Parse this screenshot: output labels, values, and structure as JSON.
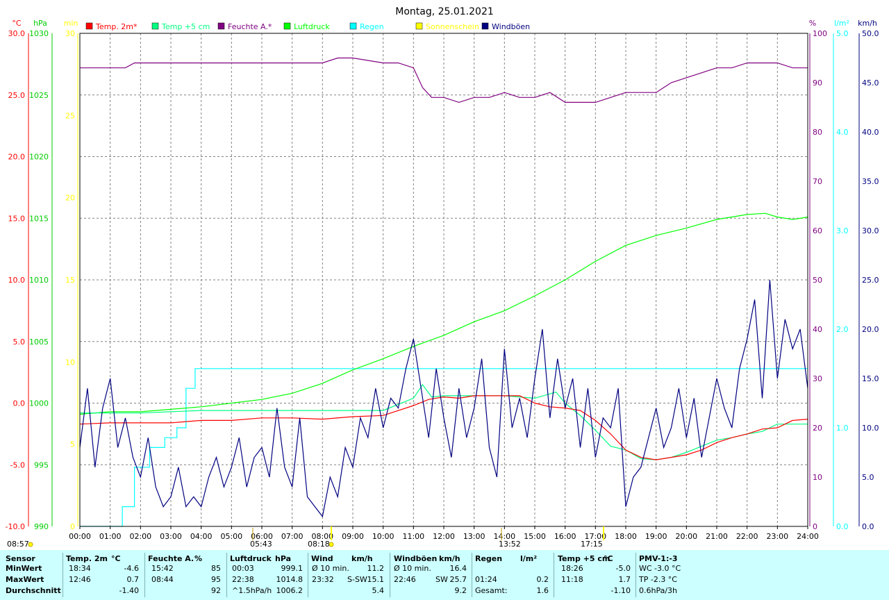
{
  "chart_data": {
    "type": "line",
    "title": "Montag, 25.01.2021",
    "x_ticks": [
      "00:00",
      "01:00",
      "02:00",
      "03:00",
      "04:00",
      "05:00",
      "06:00",
      "07:00",
      "08:00",
      "09:00",
      "10:00",
      "11:00",
      "12:00",
      "13:00",
      "14:00",
      "15:00",
      "16:00",
      "17:00",
      "18:00",
      "19:00",
      "20:00",
      "21:00",
      "22:00",
      "23:00",
      "24:00"
    ],
    "left_axes": [
      {
        "unit": "°C",
        "color": "#ff0000",
        "ticks": [
          "30.0",
          "25.0",
          "20.0",
          "15.0",
          "10.0",
          "5.0",
          "0.0",
          "-5.0",
          "-10.0"
        ]
      },
      {
        "unit": "hPa",
        "color": "#00cc00",
        "ticks": [
          "1030",
          "1025",
          "1020",
          "1015",
          "1010",
          "1005",
          "1000",
          "995",
          "990"
        ]
      },
      {
        "unit": "min",
        "color": "#ffff00",
        "ticks": [
          "30",
          "25",
          "20",
          "15",
          "10",
          "5",
          "0"
        ]
      }
    ],
    "right_axes": [
      {
        "unit": "%",
        "color": "#800080",
        "ticks": [
          "100",
          "90",
          "80",
          "70",
          "60",
          "50",
          "40",
          "30",
          "20",
          "10",
          "0"
        ]
      },
      {
        "unit": "l/m²",
        "color": "#00ffff",
        "ticks": [
          "5.0",
          "4.0",
          "3.0",
          "2.0",
          "1.0",
          "0.0"
        ]
      },
      {
        "unit": "km/h",
        "color": "#000080",
        "ticks": [
          "50.0",
          "45.0",
          "40.0",
          "35.0",
          "30.0",
          "25.0",
          "20.0",
          "15.0",
          "10.0",
          "5.0",
          "0.0"
        ]
      }
    ],
    "legend": [
      {
        "label": "Temp. 2m*",
        "color": "#ff0000"
      },
      {
        "label": "Temp +5 cm",
        "color": "#00ff80"
      },
      {
        "label": "Feuchte A.*",
        "color": "#800080"
      },
      {
        "label": "Luftdruck",
        "color": "#00ff00"
      },
      {
        "label": "Regen",
        "color": "#00ffff"
      },
      {
        "label": "Sonnenschein",
        "color": "#ffff00"
      },
      {
        "label": "Windböen",
        "color": "#000080"
      }
    ],
    "sun_markers": [
      "08:57",
      "05:43",
      "08:18",
      "13:52",
      "17:15"
    ],
    "series": [
      {
        "name": "Temp. 2m*",
        "axis": "°C",
        "color": "#ff0000",
        "x": [
          0,
          1,
          2,
          3,
          4,
          5,
          6,
          7,
          8,
          9,
          10,
          11,
          11.5,
          12,
          12.5,
          13,
          14,
          14.5,
          15,
          15.5,
          16,
          16.5,
          17,
          17.5,
          18,
          18.5,
          19,
          19.5,
          20,
          20.5,
          21,
          21.5,
          22,
          22.5,
          23,
          23.5,
          24
        ],
        "y": [
          -1.7,
          -1.6,
          -1.6,
          -1.6,
          -1.4,
          -1.4,
          -1.2,
          -1.2,
          -1.3,
          -1.1,
          -1.0,
          -0.2,
          0.3,
          0.5,
          0.4,
          0.6,
          0.6,
          0.6,
          0.0,
          -0.3,
          -0.4,
          -0.6,
          -1.4,
          -2.5,
          -3.8,
          -4.4,
          -4.6,
          -4.4,
          -4.2,
          -3.8,
          -3.2,
          -2.8,
          -2.5,
          -2.1,
          -2.0,
          -1.4,
          -1.3
        ]
      },
      {
        "name": "Temp +5 cm",
        "axis": "°C",
        "color": "#00ff80",
        "x": [
          0,
          1,
          2,
          3,
          4,
          5,
          6,
          7,
          8,
          9,
          10,
          11,
          11.3,
          11.6,
          12,
          13,
          14,
          15,
          15.7,
          16,
          16.5,
          17,
          17.5,
          18,
          18.5,
          19,
          19.5,
          20,
          20.5,
          21,
          21.5,
          22,
          22.5,
          23,
          23.5,
          24
        ],
        "y": [
          -0.8,
          -0.8,
          -0.8,
          -0.7,
          -0.6,
          -0.6,
          -0.6,
          -0.6,
          -0.6,
          -0.6,
          -0.6,
          0.4,
          1.5,
          0.5,
          0.6,
          0.6,
          0.6,
          0.4,
          0.9,
          0.0,
          -1.0,
          -2.2,
          -3.5,
          -3.8,
          -4.5,
          -4.6,
          -4.4,
          -4.0,
          -3.5,
          -3.0,
          -2.8,
          -2.5,
          -2.3,
          -1.7,
          -1.7,
          -1.7
        ]
      },
      {
        "name": "Feuchte A.*",
        "axis": "%",
        "color": "#800080",
        "x": [
          0,
          1.5,
          1.8,
          2,
          5,
          8,
          8.5,
          9,
          10,
          10.5,
          11,
          11.3,
          11.6,
          12,
          12.5,
          13,
          13.5,
          14,
          14.5,
          15,
          15.5,
          16,
          16.5,
          17,
          17.5,
          18,
          18.5,
          19,
          19.5,
          20,
          20.5,
          21,
          21.5,
          22,
          23,
          23.5,
          24
        ],
        "y": [
          93,
          93,
          94,
          94,
          94,
          94,
          95,
          95,
          94,
          94,
          93,
          89,
          87,
          87,
          86,
          87,
          87,
          88,
          87,
          87,
          88,
          86,
          86,
          86,
          87,
          88,
          88,
          88,
          90,
          91,
          92,
          93,
          93,
          94,
          94,
          93,
          93
        ]
      },
      {
        "name": "Luftdruck",
        "axis": "hPa",
        "color": "#00ff00",
        "x": [
          0,
          1,
          2,
          3,
          4,
          5,
          6,
          7,
          8,
          9,
          10,
          11,
          12,
          13,
          14,
          15,
          16,
          17,
          18,
          19,
          20,
          21,
          22,
          22.6,
          23,
          23.5,
          24
        ],
        "y": [
          999.1,
          999.3,
          999.3,
          999.5,
          999.7,
          1000.0,
          1000.3,
          1000.8,
          1001.6,
          1002.7,
          1003.6,
          1004.6,
          1005.5,
          1006.6,
          1007.5,
          1008.7,
          1010.0,
          1011.5,
          1012.8,
          1013.6,
          1014.2,
          1014.9,
          1015.3,
          1015.4,
          1015.1,
          1014.9,
          1015.1
        ]
      },
      {
        "name": "Regen",
        "axis": "l/m²",
        "color": "#00ffff",
        "x": [
          0,
          1.0,
          1.4,
          1.8,
          2.3,
          2.8,
          3.2,
          3.5,
          3.8,
          4.0,
          24
        ],
        "y": [
          0.0,
          0.0,
          0.2,
          0.6,
          0.8,
          0.9,
          1.0,
          1.4,
          1.6,
          1.6,
          1.6
        ]
      },
      {
        "name": "Windböen",
        "axis": "km/h",
        "color": "#000080",
        "x": [
          0,
          0.25,
          0.5,
          0.75,
          1.0,
          1.25,
          1.5,
          1.75,
          2.0,
          2.25,
          2.5,
          2.75,
          3.0,
          3.25,
          3.5,
          3.75,
          4.0,
          4.25,
          4.5,
          4.75,
          5.0,
          5.25,
          5.5,
          5.75,
          6.0,
          6.25,
          6.5,
          6.75,
          7.0,
          7.25,
          7.5,
          7.75,
          8.0,
          8.25,
          8.5,
          8.75,
          9.0,
          9.25,
          9.5,
          9.75,
          10.0,
          10.25,
          10.5,
          10.75,
          11.0,
          11.25,
          11.5,
          11.75,
          12.0,
          12.25,
          12.5,
          12.75,
          13.0,
          13.25,
          13.5,
          13.75,
          14.0,
          14.25,
          14.5,
          14.75,
          15.0,
          15.25,
          15.5,
          15.75,
          16.0,
          16.25,
          16.5,
          16.75,
          17.0,
          17.25,
          17.5,
          17.75,
          18.0,
          18.25,
          18.5,
          18.75,
          19.0,
          19.25,
          19.5,
          19.75,
          20.0,
          20.25,
          20.5,
          20.75,
          21.0,
          21.25,
          21.5,
          21.75,
          22.0,
          22.25,
          22.5,
          22.75,
          23.0,
          23.25,
          23.5,
          23.75,
          24.0
        ],
        "y": [
          8,
          14,
          6,
          12,
          15,
          8,
          11,
          7,
          5,
          9,
          4,
          2,
          3,
          6,
          2,
          3,
          2,
          5,
          7,
          4,
          6,
          9,
          4,
          7,
          8,
          5,
          12,
          6,
          4,
          11,
          3,
          2,
          1,
          5,
          3,
          8,
          6,
          11,
          9,
          14,
          10,
          13,
          12,
          16,
          19,
          14,
          9,
          16,
          11,
          7,
          14,
          9,
          12,
          17,
          8,
          5,
          18,
          10,
          13,
          9,
          15,
          20,
          11,
          17,
          12,
          15,
          8,
          14,
          7,
          11,
          10,
          14,
          2,
          5,
          6,
          9,
          12,
          8,
          10,
          14,
          9,
          13,
          7,
          11,
          15,
          12,
          10,
          16,
          19,
          23,
          13,
          25,
          15,
          21,
          18,
          20,
          14
        ]
      }
    ]
  },
  "stats": {
    "headers": [
      "Sensor",
      "Temp. 2m",
      "°C",
      "Feuchte A.",
      "%",
      "Luftdruck",
      "hPa",
      "Wind",
      "km/h",
      "Windböen",
      "km/h",
      "Regen",
      "l/m²",
      "Temp +5 cm",
      "°C",
      "PMV-1:-3"
    ],
    "row_labels": [
      "MinWert",
      "MaxWert",
      "Durchschnitt"
    ],
    "temp2m": [
      [
        "18:34",
        "-4.6"
      ],
      [
        "12:46",
        "0.7"
      ],
      [
        "",
        "-1.40"
      ]
    ],
    "humidity": [
      [
        "15:42",
        "85"
      ],
      [
        "08:44",
        "95"
      ],
      [
        "",
        "92"
      ]
    ],
    "pressure": [
      [
        "00:03",
        "999.1"
      ],
      [
        "22:38",
        "1014.8"
      ],
      [
        "^1.5hPa/h",
        "1006.2"
      ]
    ],
    "wind": [
      [
        "Ø 10 min.",
        "",
        "11.2"
      ],
      [
        "23:32",
        "S-SW",
        "15.1"
      ],
      [
        "",
        "",
        "5.4"
      ]
    ],
    "gusts": [
      [
        "Ø 10 min.",
        "",
        "16.4"
      ],
      [
        "22:46",
        "SW",
        "25.7"
      ],
      [
        "",
        "",
        "9.2"
      ]
    ],
    "rain": [
      [
        "",
        ""
      ],
      [
        "01:24",
        "0.2"
      ],
      [
        "Gesamt:",
        "1.6"
      ]
    ],
    "temp5cm": [
      [
        "18:26",
        "-5.0"
      ],
      [
        "11:18",
        "1.7"
      ],
      [
        "",
        "-1.10"
      ]
    ],
    "pmv": [
      "WC -3.0 °C",
      "TP -2.3 °C",
      "0.6hPa/3h"
    ]
  }
}
